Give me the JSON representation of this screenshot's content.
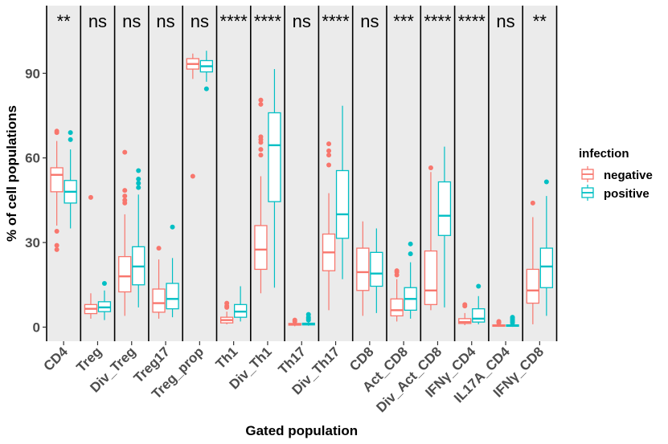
{
  "chart_data": {
    "type": "boxplot",
    "xlabel": "Gated population",
    "ylabel": "% of cell populations",
    "ylim": [
      -5,
      114
    ],
    "yticks": [
      0,
      30,
      60,
      90
    ],
    "grid": false,
    "legend": {
      "title": "infection",
      "position": "right",
      "entries": [
        {
          "name": "negative",
          "color": "#F8766D"
        },
        {
          "name": "positive",
          "color": "#00BFC4"
        }
      ]
    },
    "categories": [
      "CD4",
      "Treg",
      "Div_Treg",
      "Treg17",
      "Treg_prop",
      "Th1",
      "Div_Th1",
      "Th17",
      "Div_Th17",
      "CD8",
      "Act_CD8",
      "Div_Act_CD8",
      "IFNγ_CD4",
      "IL17A_CD4",
      "IFNγ_CD8"
    ],
    "significance": [
      "**",
      "ns",
      "ns",
      "ns",
      "ns",
      "****",
      "****",
      "ns",
      "****",
      "ns",
      "***",
      "****",
      "****",
      "ns",
      "**"
    ],
    "series": [
      {
        "name": "negative",
        "color": "#F8766D",
        "boxes": [
          {
            "lower_whisker": 36,
            "q1": 48,
            "median": 54,
            "q3": 56.5,
            "upper_whisker": 66,
            "outliers": [
              69.5,
              69,
              34,
              29,
              27.5
            ]
          },
          {
            "lower_whisker": 3,
            "q1": 4.8,
            "median": 6.5,
            "q3": 8,
            "upper_whisker": 12,
            "outliers": [
              46
            ]
          },
          {
            "lower_whisker": 4,
            "q1": 12.5,
            "median": 18,
            "q3": 25,
            "upper_whisker": 40,
            "outliers": [
              62,
              48.5,
              46.5,
              45,
              44
            ]
          },
          {
            "lower_whisker": 3,
            "q1": 5.3,
            "median": 8.5,
            "q3": 13.5,
            "upper_whisker": 24,
            "outliers": [
              28
            ]
          },
          {
            "lower_whisker": 88,
            "q1": 91.5,
            "median": 93.3,
            "q3": 95.2,
            "upper_whisker": 97,
            "outliers": [
              53.5
            ]
          },
          {
            "lower_whisker": 1,
            "q1": 1.5,
            "median": 2.5,
            "q3": 3.5,
            "upper_whisker": 5.5,
            "outliers": [
              8.5,
              7.5,
              7
            ]
          },
          {
            "lower_whisker": 12,
            "q1": 20.5,
            "median": 27.5,
            "q3": 36,
            "upper_whisker": 53.5,
            "outliers": [
              80.5,
              79,
              67.5,
              66.5,
              65.5,
              63,
              61
            ]
          },
          {
            "lower_whisker": 0.3,
            "q1": 0.7,
            "median": 1,
            "q3": 1.3,
            "upper_whisker": 1.8,
            "outliers": [
              2.5,
              2
            ]
          },
          {
            "lower_whisker": 6,
            "q1": 20,
            "median": 26.5,
            "q3": 33,
            "upper_whisker": 47.5,
            "outliers": [
              65,
              62.5,
              61,
              57.5
            ]
          },
          {
            "lower_whisker": 4,
            "q1": 13,
            "median": 19.5,
            "q3": 28,
            "upper_whisker": 37.5,
            "outliers": []
          },
          {
            "lower_whisker": 2,
            "q1": 4,
            "median": 6,
            "q3": 10,
            "upper_whisker": 17,
            "outliers": [
              20,
              19.5,
              18.5
            ]
          },
          {
            "lower_whisker": 6,
            "q1": 8,
            "median": 13,
            "q3": 27,
            "upper_whisker": 55,
            "outliers": [
              56.5
            ]
          },
          {
            "lower_whisker": 0.7,
            "q1": 1.3,
            "median": 1.8,
            "q3": 3,
            "upper_whisker": 5,
            "outliers": [
              8,
              7.5
            ]
          },
          {
            "lower_whisker": 0.1,
            "q1": 0.3,
            "median": 0.5,
            "q3": 0.8,
            "upper_whisker": 1.3,
            "outliers": [
              2,
              1.8,
              1.5
            ]
          },
          {
            "lower_whisker": 1,
            "q1": 8.5,
            "median": 13,
            "q3": 20.5,
            "upper_whisker": 39,
            "outliers": [
              44
            ]
          }
        ]
      },
      {
        "name": "positive",
        "color": "#00BFC4",
        "boxes": [
          {
            "lower_whisker": 35,
            "q1": 44,
            "median": 48,
            "q3": 52,
            "upper_whisker": 63,
            "outliers": [
              69,
              66.5
            ]
          },
          {
            "lower_whisker": 2.5,
            "q1": 5.5,
            "median": 7,
            "q3": 9,
            "upper_whisker": 13,
            "outliers": [
              15.5
            ]
          },
          {
            "lower_whisker": 7,
            "q1": 15,
            "median": 21.5,
            "q3": 28.5,
            "upper_whisker": 47,
            "outliers": [
              55.5,
              52.5,
              51,
              49.5
            ]
          },
          {
            "lower_whisker": 3.5,
            "q1": 6.5,
            "median": 10,
            "q3": 15.5,
            "upper_whisker": 24.5,
            "outliers": [
              35.5
            ]
          },
          {
            "lower_whisker": 87,
            "q1": 90.5,
            "median": 92.5,
            "q3": 94.5,
            "upper_whisker": 98,
            "outliers": [
              84.5
            ]
          },
          {
            "lower_whisker": 2,
            "q1": 3.5,
            "median": 5.5,
            "q3": 8,
            "upper_whisker": 14.5,
            "outliers": []
          },
          {
            "lower_whisker": 14,
            "q1": 44.5,
            "median": 64.5,
            "q3": 76,
            "upper_whisker": 91.5,
            "outliers": []
          },
          {
            "lower_whisker": 0.5,
            "q1": 0.8,
            "median": 1,
            "q3": 1.4,
            "upper_whisker": 2,
            "outliers": [
              4.5,
              3.5,
              3,
              2.5
            ]
          },
          {
            "lower_whisker": 17,
            "q1": 31.5,
            "median": 40,
            "q3": 55.5,
            "upper_whisker": 78.5,
            "outliers": []
          },
          {
            "lower_whisker": 5,
            "q1": 14.5,
            "median": 19,
            "q3": 26.5,
            "upper_whisker": 35,
            "outliers": []
          },
          {
            "lower_whisker": 3,
            "q1": 6,
            "median": 10,
            "q3": 14,
            "upper_whisker": 23,
            "outliers": [
              29.5,
              26
            ]
          },
          {
            "lower_whisker": 7,
            "q1": 32.5,
            "median": 39.5,
            "q3": 51.5,
            "upper_whisker": 64,
            "outliers": []
          },
          {
            "lower_whisker": 1,
            "q1": 1.8,
            "median": 3,
            "q3": 6.5,
            "upper_whisker": 11,
            "outliers": [
              14.5
            ]
          },
          {
            "lower_whisker": 0.1,
            "q1": 0.3,
            "median": 0.5,
            "q3": 0.8,
            "upper_whisker": 1.3,
            "outliers": [
              3.5,
              3,
              2.5,
              2,
              1.5
            ]
          },
          {
            "lower_whisker": 4,
            "q1": 14,
            "median": 21.5,
            "q3": 28,
            "upper_whisker": 46.5,
            "outliers": [
              51.5
            ]
          }
        ]
      }
    ]
  }
}
